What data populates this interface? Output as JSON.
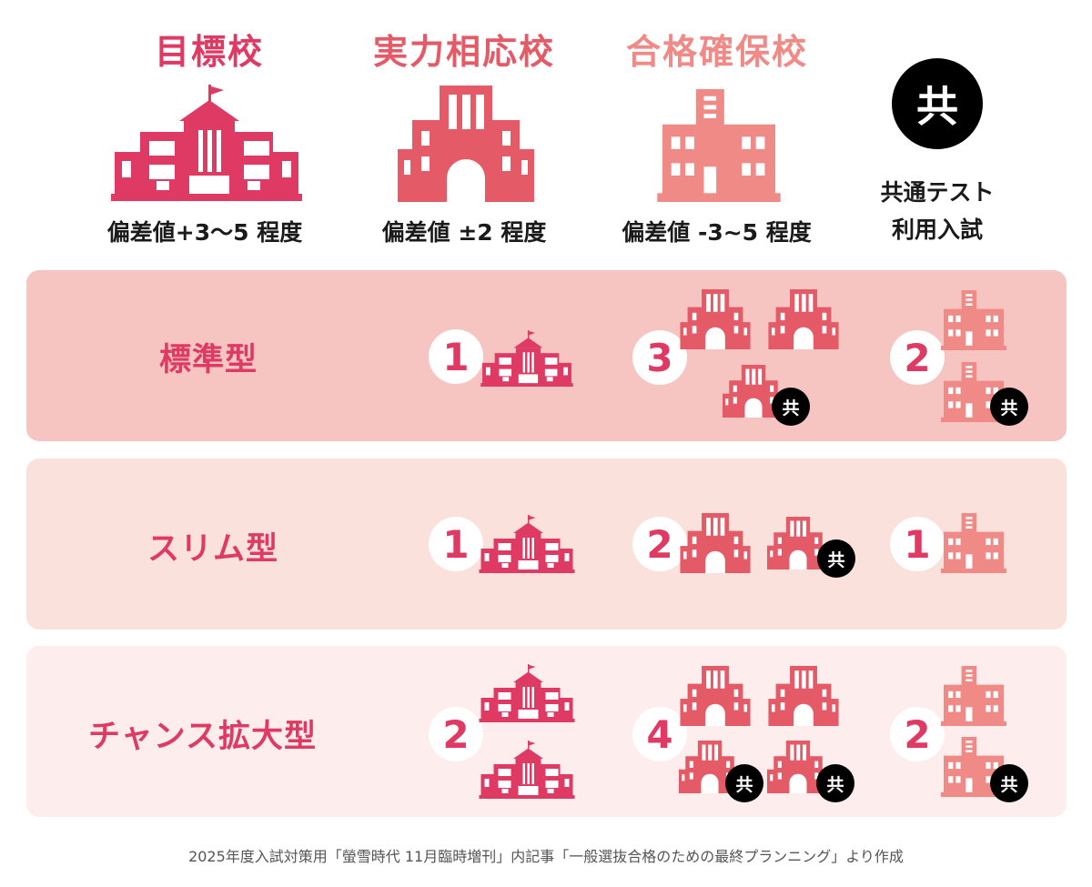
{
  "header": {
    "col1": {
      "title": "目標校",
      "sub": "偏差値+3〜5 程度"
    },
    "col2": {
      "title": "実力相応校",
      "sub": "偏差値 ±2 程度"
    },
    "col3": {
      "title": "合格確保校",
      "sub": "偏差値 -3~5 程度"
    },
    "col4": {
      "badge": "共",
      "line1": "共通テスト",
      "line2": "利用入試"
    }
  },
  "colors": {
    "target": "#de3a63",
    "match": "#e45a67",
    "safety": "#f08a87",
    "row1": "#f6c5c2",
    "row2": "#fbe1dc",
    "row3": "#fdeeed"
  },
  "rows": [
    {
      "label": "標準型",
      "target": "1",
      "match": "3",
      "safety": "2",
      "badge": "共"
    },
    {
      "label": "スリム型",
      "target": "1",
      "match": "2",
      "safety": "1",
      "badge": "共"
    },
    {
      "label": "チャンス拡大型",
      "target": "2",
      "match": "4",
      "safety": "2",
      "badge": "共"
    }
  ],
  "footer": "2025年度入試対策用「螢雪時代 11月臨時増刊」内記事「一般選抜合格のための最終プランニング」より作成"
}
